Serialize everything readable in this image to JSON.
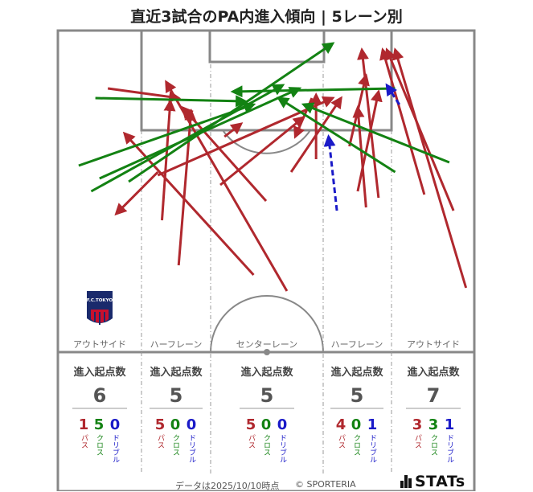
{
  "title": "直近3試合のPA内進入傾向 | 5レーン別",
  "footer": {
    "date_text": "データは2025/10/10時点",
    "copyright": "© SPORTERIA",
    "brand": "STATs"
  },
  "colors": {
    "pass": "#b0282e",
    "cross": "#138213",
    "dribble": "#1a1ac8",
    "line": "#888888"
  },
  "club_logo": {
    "text": "F.C.TOKYO"
  },
  "lanes": [
    {
      "name": "アウトサイド",
      "head": "進入起点数",
      "total": "6",
      "pass": "1",
      "cross": "5",
      "dribble": "0"
    },
    {
      "name": "ハーフレーン",
      "head": "進入起点数",
      "total": "5",
      "pass": "5",
      "cross": "0",
      "dribble": "0"
    },
    {
      "name": "センターレーン",
      "head": "進入起点数",
      "total": "5",
      "pass": "5",
      "cross": "0",
      "dribble": "0"
    },
    {
      "name": "ハーフレーン",
      "head": "進入起点数",
      "total": "5",
      "pass": "4",
      "cross": "0",
      "dribble": "1"
    },
    {
      "name": "アウトサイド",
      "head": "進入起点数",
      "total": "7",
      "pass": "3",
      "cross": "3",
      "dribble": "1"
    }
  ],
  "kind_labels": {
    "pass": "パス",
    "cross": "クロス",
    "dribble": "ドリブル"
  },
  "chart_data": {
    "type": "scatter",
    "note_units": "pitch units: x 0-100 across the attacking half (left to right), y 0-100 from the goal line toward halfway",
    "arrows": [
      {
        "kind": "pass",
        "from": [
          55,
          81
        ],
        "to": [
          26,
          16
        ]
      },
      {
        "kind": "pass",
        "from": [
          50,
          53
        ],
        "to": [
          30,
          24
        ]
      },
      {
        "kind": "pass",
        "from": [
          29,
          73
        ],
        "to": [
          32,
          25
        ]
      },
      {
        "kind": "pass",
        "from": [
          25,
          59
        ],
        "to": [
          27,
          22
        ]
      },
      {
        "kind": "pass",
        "from": [
          12,
          18
        ],
        "to": [
          29,
          21
        ]
      },
      {
        "kind": "pass",
        "from": [
          24,
          45
        ],
        "to": [
          66,
          21
        ]
      },
      {
        "kind": "pass",
        "from": [
          39,
          48
        ],
        "to": [
          59,
          27
        ]
      },
      {
        "kind": "pass",
        "from": [
          40,
          33
        ],
        "to": [
          44,
          29
        ]
      },
      {
        "kind": "pass",
        "from": [
          56,
          44
        ],
        "to": [
          68,
          21
        ]
      },
      {
        "kind": "pass",
        "from": [
          62,
          40
        ],
        "to": [
          62,
          20
        ]
      },
      {
        "kind": "pass",
        "from": [
          74,
          55
        ],
        "to": [
          72,
          24
        ]
      },
      {
        "kind": "pass",
        "from": [
          77,
          52
        ],
        "to": [
          73,
          6
        ]
      },
      {
        "kind": "pass",
        "from": [
          70,
          36
        ],
        "to": [
          74,
          14
        ]
      },
      {
        "kind": "pass",
        "from": [
          72,
          50
        ],
        "to": [
          77,
          19
        ]
      },
      {
        "kind": "pass",
        "from": [
          88,
          51
        ],
        "to": [
          78,
          6
        ]
      },
      {
        "kind": "pass",
        "from": [
          95,
          56
        ],
        "to": [
          79,
          6
        ]
      },
      {
        "kind": "pass",
        "from": [
          98,
          80
        ],
        "to": [
          81,
          6
        ]
      },
      {
        "kind": "pass",
        "from": [
          61,
          21
        ],
        "to": [
          57,
          33
        ]
      },
      {
        "kind": "pass",
        "from": [
          47,
          76
        ],
        "to": [
          16,
          32
        ]
      },
      {
        "kind": "pass",
        "from": [
          24,
          44
        ],
        "to": [
          14,
          57
        ]
      },
      {
        "kind": "cross",
        "from": [
          5,
          42
        ],
        "to": [
          47,
          23
        ]
      },
      {
        "kind": "cross",
        "from": [
          8,
          50
        ],
        "to": [
          54,
          17
        ]
      },
      {
        "kind": "cross",
        "from": [
          10,
          46
        ],
        "to": [
          58,
          18
        ]
      },
      {
        "kind": "cross",
        "from": [
          9,
          21
        ],
        "to": [
          45,
          22
        ]
      },
      {
        "kind": "cross",
        "from": [
          17,
          47
        ],
        "to": [
          66,
          4
        ]
      },
      {
        "kind": "cross",
        "from": [
          81,
          18
        ],
        "to": [
          42,
          19
        ]
      },
      {
        "kind": "cross",
        "from": [
          81,
          44
        ],
        "to": [
          53,
          21
        ]
      },
      {
        "kind": "cross",
        "from": [
          94,
          41
        ],
        "to": [
          59,
          23
        ]
      },
      {
        "kind": "dribble",
        "from": [
          67,
          56
        ],
        "to": [
          65,
          33
        ]
      },
      {
        "kind": "dribble",
        "from": [
          82,
          23
        ],
        "to": [
          79,
          17
        ]
      }
    ]
  }
}
